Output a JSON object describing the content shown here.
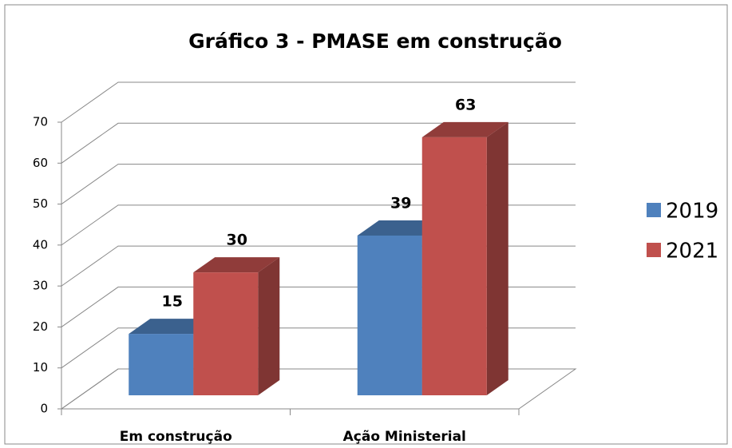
{
  "chart_data": {
    "type": "bar",
    "title": "Gráfico 3 - PMASE em construção",
    "categories": [
      "Em construção",
      "Ação Ministerial"
    ],
    "series": [
      {
        "name": "2019",
        "color": "#4f81bd",
        "values": [
          15,
          39
        ]
      },
      {
        "name": "2021",
        "color": "#c0504d",
        "values": [
          30,
          63
        ]
      }
    ],
    "ylim": [
      0,
      70
    ],
    "yticks": [
      0,
      10,
      20,
      30,
      40,
      50,
      60,
      70
    ],
    "grid": true,
    "legend": "right"
  }
}
